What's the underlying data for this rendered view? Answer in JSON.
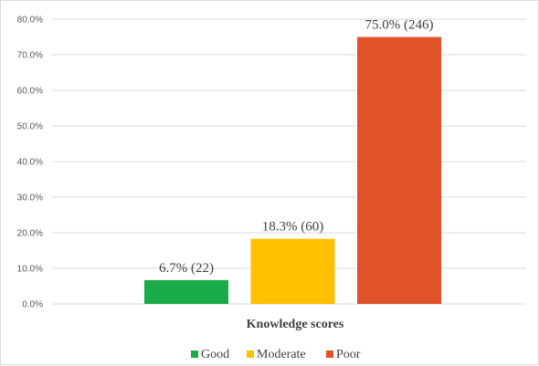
{
  "chart_data": {
    "type": "bar",
    "categories": [
      "Good",
      "Moderate",
      "Poor"
    ],
    "values": [
      6.7,
      18.3,
      75.0
    ],
    "data_labels": [
      "6.7% (22)",
      "18.3% (60)",
      "75.0% (246)"
    ],
    "colors": [
      "#1aab49",
      "#ffc000",
      "#e0522a"
    ],
    "xlabel": "Knowledge scores",
    "ylabel": "",
    "ylim": [
      0,
      80
    ],
    "yticks": [
      "0.0%",
      "10.0%",
      "20.0%",
      "30.0%",
      "40.0%",
      "50.0%",
      "60.0%",
      "70.0%",
      "80.0%"
    ],
    "grid": true,
    "legend": {
      "position": "bottom",
      "entries": [
        "Good",
        "Moderate",
        "Poor"
      ]
    }
  }
}
